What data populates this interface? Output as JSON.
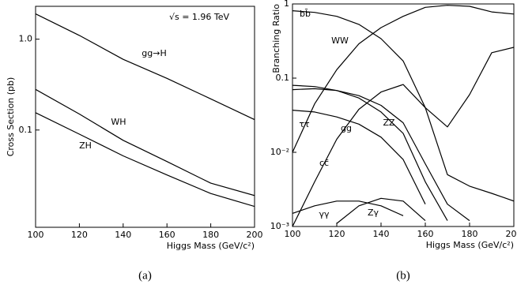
{
  "chart_data": [
    {
      "type": "line",
      "yscale": "log",
      "color": "#000000",
      "xlabel": "Higgs Mass (GeV/c²)",
      "ylabel": "Cross Section (pb)",
      "caption": "(a)",
      "annotation": "√s = 1.96 TeV",
      "x": [
        100,
        120,
        140,
        160,
        180,
        200
      ],
      "series": [
        {
          "name": "gg→H",
          "values": [
            1.9,
            1.1,
            0.6,
            0.37,
            0.22,
            0.13
          ]
        },
        {
          "name": "WH",
          "values": [
            0.28,
            0.15,
            0.077,
            0.045,
            0.026,
            0.019
          ]
        },
        {
          "name": "ZH",
          "values": [
            0.155,
            0.09,
            0.052,
            0.032,
            0.02,
            0.0144
          ]
        }
      ],
      "xlim": [
        100,
        200
      ],
      "xticks": [
        100,
        120,
        140,
        160,
        180,
        200
      ],
      "ylim": [
        0.0085,
        2.3
      ],
      "yticks": [
        {
          "value": 1,
          "label": "1.0"
        },
        0.1
      ]
    },
    {
      "type": "line",
      "yscale": "log",
      "color": "#000000",
      "xlabel": "Higgs Mass (GeV/c²)",
      "ylabel": "Branching Ratio",
      "caption": "(b)",
      "x": [
        100,
        110,
        120,
        130,
        140,
        150,
        160,
        170,
        180,
        190,
        200
      ],
      "series": [
        {
          "name": "bb̄",
          "values": [
            0.81,
            0.77,
            0.68,
            0.53,
            0.34,
            0.17,
            0.04,
            0.005,
            0.0035,
            0.0028,
            0.0022
          ]
        },
        {
          "name": "WW",
          "values": [
            0.01,
            0.045,
            0.13,
            0.29,
            0.48,
            0.68,
            0.9,
            0.96,
            0.93,
            0.78,
            0.73
          ]
        },
        {
          "name": "ZZ",
          "values": [
            0.001,
            0.004,
            0.015,
            0.038,
            0.065,
            0.082,
            0.04,
            0.022,
            0.06,
            0.22,
            0.26
          ]
        },
        {
          "name": "ττ",
          "values": [
            0.08,
            0.077,
            0.068,
            0.054,
            0.035,
            0.018,
            0.004,
            0.0012,
            null,
            null,
            null
          ]
        },
        {
          "name": "gg",
          "values": [
            0.07,
            0.072,
            0.068,
            0.058,
            0.043,
            0.025,
            0.007,
            0.002,
            0.0012,
            null,
            null
          ]
        },
        {
          "name": "cc̄",
          "values": [
            0.037,
            0.035,
            0.03,
            0.024,
            0.016,
            0.008,
            0.002,
            null,
            null,
            null,
            null
          ]
        },
        {
          "name": "γγ",
          "values": [
            0.0015,
            0.0019,
            0.0022,
            0.0022,
            0.0019,
            0.0014,
            null,
            null,
            null,
            null,
            null
          ]
        },
        {
          "name": "Zγ",
          "values": [
            null,
            null,
            0.0011,
            0.0019,
            0.0024,
            0.0022,
            0.0012,
            null,
            null,
            null,
            null
          ]
        }
      ],
      "xlim": [
        100,
        200
      ],
      "xticks": [
        100,
        120,
        140,
        160,
        180,
        200
      ],
      "ylim": [
        0.001,
        1
      ],
      "yticks": [
        1,
        0.1,
        {
          "value": 0.01,
          "label": "10⁻²"
        },
        {
          "value": 0.001,
          "label": "10⁻³"
        }
      ]
    }
  ]
}
